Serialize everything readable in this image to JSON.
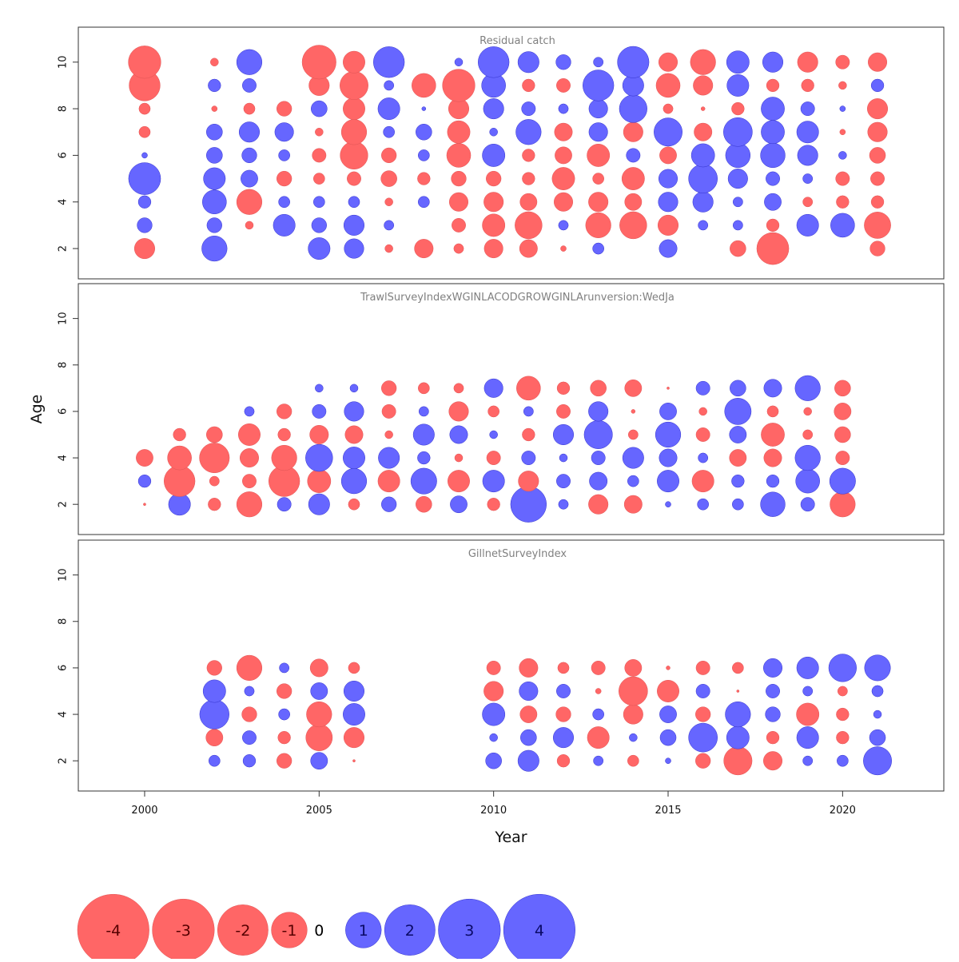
{
  "chart_data": {
    "type": "scatter",
    "subtype": "bubble",
    "xlabel": "Year",
    "ylabel": "Age",
    "x_ticks": [
      2000,
      2005,
      2010,
      2015,
      2020
    ],
    "xlim": [
      1998.1,
      2022.9
    ],
    "ylim": [
      0.7,
      11.5
    ],
    "y_ticks": [
      2,
      4,
      6,
      8,
      10
    ],
    "colors": {
      "positive": "#6666ff",
      "negative": "#ff6666",
      "outline_positive": "#3333cc",
      "outline_negative": "#e05555"
    },
    "size_legend": {
      "values": [
        -4,
        -3,
        -2,
        -1,
        0,
        1,
        2,
        3,
        4
      ],
      "labels": [
        "-4",
        "-3",
        "-2",
        "-1",
        "0",
        "1",
        "2",
        "3",
        "4"
      ]
    },
    "panels": [
      {
        "title": "Residual catch",
        "years": [
          2000,
          2002,
          2003,
          2004,
          2005,
          2006,
          2007,
          2008,
          2009,
          2010,
          2011,
          2012,
          2013,
          2014,
          2015,
          2016,
          2017,
          2018,
          2019,
          2020,
          2021
        ],
        "ages": [
          2,
          3,
          4,
          5,
          6,
          7,
          8,
          9,
          10
        ],
        "residuals": [
          [
            -1.3,
            0.7,
            0.5,
            3.2,
            0.1,
            -0.4,
            -0.4,
            -3.0,
            -3.3
          ],
          [
            2.0,
            0.7,
            1.8,
            1.5,
            0.8,
            0.8,
            -0.1,
            0.5,
            -0.2
          ],
          [
            null,
            -0.2,
            -2.0,
            0.9,
            0.7,
            1.3,
            -0.4,
            0.6,
            2.0
          ],
          [
            null,
            1.5,
            0.4,
            -0.7,
            0.4,
            1.1,
            -0.7,
            null,
            null
          ],
          [
            1.5,
            0.7,
            0.4,
            -0.4,
            -0.6,
            -0.2,
            0.8,
            -1.3,
            -3.6
          ],
          [
            1.2,
            1.3,
            0.4,
            -0.6,
            -2.4,
            -2.0,
            -1.5,
            -2.5,
            -1.5
          ],
          [
            -0.2,
            0.3,
            -0.2,
            -0.8,
            -0.7,
            0.4,
            1.5,
            0.3,
            3.0
          ],
          [
            -1.1,
            null,
            0.4,
            -0.5,
            0.4,
            0.8,
            0.05,
            -1.8,
            null
          ],
          [
            -0.3,
            -0.6,
            -1.1,
            -0.7,
            -1.8,
            -1.6,
            -1.3,
            -3.3,
            0.2
          ],
          [
            -1.1,
            -1.6,
            -1.2,
            -0.7,
            1.6,
            0.2,
            1.3,
            1.8,
            3.0
          ],
          [
            -1.0,
            -2.3,
            -0.9,
            -0.5,
            -0.5,
            2.0,
            0.6,
            -0.5,
            1.4
          ],
          [
            -0.1,
            0.3,
            -1.1,
            -1.6,
            -0.9,
            -1.0,
            0.3,
            -0.6,
            0.7
          ],
          [
            0.4,
            -2.0,
            -1.2,
            -0.4,
            -1.6,
            1.1,
            1.1,
            3.0,
            0.3
          ],
          [
            null,
            -2.3,
            -0.9,
            -1.6,
            0.6,
            -1.2,
            2.4,
            1.4,
            3.1
          ],
          [
            1.0,
            -1.3,
            1.2,
            1.1,
            -0.9,
            2.5,
            -0.3,
            -1.8,
            -1.1
          ],
          [
            null,
            0.3,
            1.3,
            2.6,
            1.7,
            -1.0,
            -0.05,
            -1.2,
            -2.0
          ],
          [
            -0.8,
            0.3,
            0.3,
            1.2,
            1.9,
            2.6,
            -0.5,
            1.5,
            1.6
          ],
          [
            -3.2,
            -0.5,
            0.9,
            0.6,
            1.9,
            1.7,
            1.7,
            -0.5,
            1.3
          ],
          [
            null,
            1.5,
            -0.3,
            0.3,
            1.3,
            1.5,
            0.6,
            -0.5,
            -1.3
          ],
          [
            null,
            1.8,
            -0.5,
            -0.6,
            0.2,
            -0.1,
            0.1,
            -0.2,
            -0.6
          ],
          [
            -0.7,
            -2.2,
            -0.5,
            -0.6,
            -0.8,
            -1.2,
            -1.3,
            0.5,
            -1.1
          ]
        ]
      },
      {
        "title": "TrawlSurveyIndexWGINLACODGROWGINLArunversion:WedJa",
        "years": [
          2000,
          2001,
          2002,
          2003,
          2004,
          2005,
          2006,
          2007,
          2008,
          2009,
          2010,
          2011,
          2012,
          2013,
          2014,
          2015,
          2016,
          2017,
          2018,
          2019,
          2020
        ],
        "ages": [
          2,
          3,
          4,
          5,
          6,
          7
        ],
        "residuals": [
          [
            -0.02,
            0.5,
            -0.9,
            null,
            null,
            null
          ],
          [
            1.5,
            -3.0,
            -1.8,
            -0.5,
            null,
            null
          ],
          [
            -0.5,
            -0.3,
            -2.8,
            -0.8,
            null,
            null
          ],
          [
            -2.0,
            -0.6,
            -1.1,
            -1.5,
            0.3,
            null
          ],
          [
            0.6,
            -3.0,
            -2.0,
            -0.5,
            -0.7,
            null
          ],
          [
            1.4,
            -1.7,
            2.3,
            -1.1,
            0.6,
            0.2
          ],
          [
            -0.4,
            2.0,
            1.5,
            -1.0,
            1.2,
            0.2
          ],
          [
            0.7,
            -1.5,
            1.4,
            -0.2,
            -0.6,
            -0.7
          ],
          [
            -0.8,
            2.1,
            0.5,
            1.4,
            0.3,
            -0.4
          ],
          [
            0.9,
            -1.5,
            -0.2,
            1.0,
            -1.2,
            -0.3
          ],
          [
            -0.5,
            1.5,
            -0.6,
            0.2,
            -0.4,
            1.1
          ],
          [
            4.0,
            -1.3,
            0.6,
            -0.5,
            0.3,
            -1.8
          ],
          [
            0.3,
            0.6,
            0.2,
            1.3,
            -0.6,
            -0.5
          ],
          [
            -1.2,
            1.0,
            0.6,
            2.5,
            1.2,
            -0.8
          ],
          [
            -1.0,
            0.4,
            1.4,
            -0.3,
            -0.05,
            -0.9
          ],
          [
            0.1,
            1.5,
            1.0,
            2.0,
            0.9,
            -0.02
          ],
          [
            0.4,
            -1.5,
            0.3,
            -0.6,
            -0.2,
            0.6
          ],
          [
            0.4,
            0.5,
            -0.9,
            0.9,
            2.2,
            0.8
          ],
          [
            1.9,
            0.5,
            -1.0,
            -1.7,
            -0.4,
            1.0
          ],
          [
            0.6,
            1.8,
            2.0,
            -0.3,
            -0.2,
            2.0
          ],
          [
            -2.0,
            2.1,
            -0.6,
            -0.8,
            -0.9,
            -0.8
          ]
        ]
      },
      {
        "title": "GillnetSurveyIndex",
        "years": [
          2002,
          2003,
          2004,
          2005,
          2006,
          2010,
          2011,
          2012,
          2013,
          2014,
          2015,
          2016,
          2017,
          2018,
          2019,
          2020,
          2021
        ],
        "ages": [
          2,
          3,
          4,
          5,
          6
        ],
        "residuals": [
          [
            0.4,
            -0.9,
            2.7,
            1.6,
            -0.7
          ],
          [
            0.5,
            0.6,
            -0.7,
            0.3,
            -2.0
          ],
          [
            -0.7,
            -0.5,
            0.4,
            -0.7,
            0.3
          ],
          [
            0.9,
            -2.2,
            -2.0,
            0.9,
            -1.0
          ],
          [
            -0.02,
            -1.3,
            1.5,
            1.3,
            -0.4
          ],
          [
            0.8,
            0.2,
            1.6,
            -1.2,
            -0.6
          ],
          [
            1.4,
            0.8,
            -0.9,
            1.1,
            -1.1
          ],
          [
            -0.5,
            1.3,
            -0.7,
            0.6,
            -0.4
          ],
          [
            0.3,
            -1.5,
            0.4,
            -0.1,
            -0.6
          ],
          [
            -0.4,
            0.2,
            -1.2,
            -2.6,
            -0.9
          ],
          [
            0.1,
            0.8,
            0.9,
            -1.5,
            -0.05
          ],
          [
            -0.7,
            2.6,
            -0.7,
            0.6,
            -0.6
          ],
          [
            -2.5,
            1.6,
            2.0,
            -0.02,
            -0.4
          ],
          [
            -1.1,
            -0.5,
            0.7,
            0.6,
            1.1
          ],
          [
            0.3,
            1.5,
            -1.6,
            0.3,
            1.5
          ],
          [
            0.4,
            -0.5,
            -0.5,
            -0.3,
            2.4
          ],
          [
            2.5,
            0.8,
            0.2,
            0.4,
            2.1
          ]
        ]
      }
    ]
  }
}
